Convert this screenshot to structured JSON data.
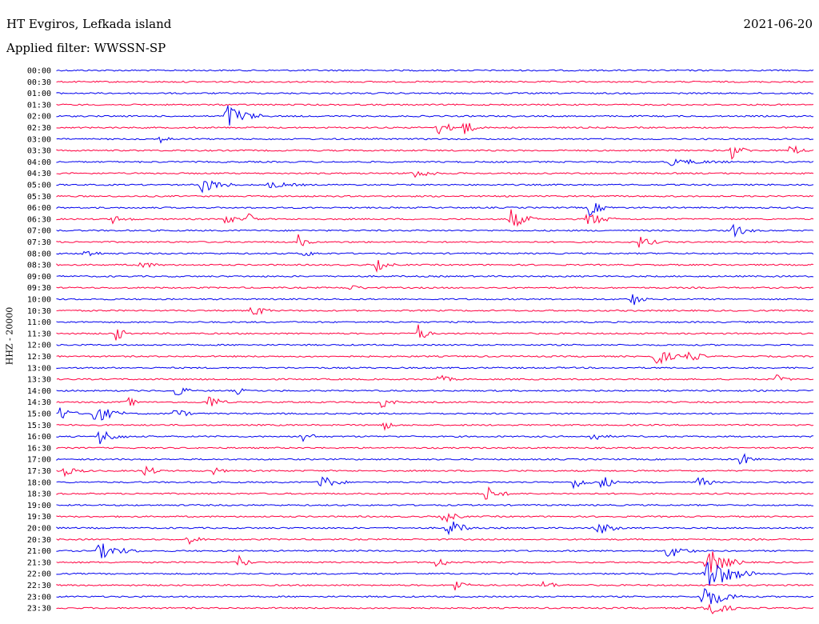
{
  "header": {
    "station": "HT Evgiros, Lefkada island",
    "date": "2021-06-20",
    "filter": "Applied filter: WWSSN-SP"
  },
  "channel_label": "HHZ - 20000",
  "colors": {
    "trace_a": "#0000ee",
    "trace_b": "#ff0040",
    "text": "#000000"
  },
  "chart_data": {
    "type": "line",
    "title": "",
    "ylabel": "HHZ - 20000",
    "xlabel": "",
    "grid": false,
    "legend": "none",
    "rows": [
      {
        "label": "00:00",
        "color": "blue"
      },
      {
        "label": "00:30",
        "color": "red"
      },
      {
        "label": "01:00",
        "color": "blue"
      },
      {
        "label": "01:30",
        "color": "red"
      },
      {
        "label": "02:00",
        "color": "blue"
      },
      {
        "label": "02:30",
        "color": "red"
      },
      {
        "label": "03:00",
        "color": "blue"
      },
      {
        "label": "03:30",
        "color": "red"
      },
      {
        "label": "04:00",
        "color": "blue"
      },
      {
        "label": "04:30",
        "color": "red"
      },
      {
        "label": "05:00",
        "color": "blue"
      },
      {
        "label": "05:30",
        "color": "red"
      },
      {
        "label": "06:00",
        "color": "blue"
      },
      {
        "label": "06:30",
        "color": "red"
      },
      {
        "label": "07:00",
        "color": "blue"
      },
      {
        "label": "07:30",
        "color": "red"
      },
      {
        "label": "08:00",
        "color": "blue"
      },
      {
        "label": "08:30",
        "color": "red"
      },
      {
        "label": "09:00",
        "color": "blue"
      },
      {
        "label": "09:30",
        "color": "red"
      },
      {
        "label": "10:00",
        "color": "blue"
      },
      {
        "label": "10:30",
        "color": "red"
      },
      {
        "label": "11:00",
        "color": "blue"
      },
      {
        "label": "11:30",
        "color": "red"
      },
      {
        "label": "12:00",
        "color": "blue"
      },
      {
        "label": "12:30",
        "color": "red"
      },
      {
        "label": "13:00",
        "color": "blue"
      },
      {
        "label": "13:30",
        "color": "red"
      },
      {
        "label": "14:00",
        "color": "blue"
      },
      {
        "label": "14:30",
        "color": "red"
      },
      {
        "label": "15:00",
        "color": "blue"
      },
      {
        "label": "15:30",
        "color": "red"
      },
      {
        "label": "16:00",
        "color": "blue"
      },
      {
        "label": "16:30",
        "color": "red"
      },
      {
        "label": "17:00",
        "color": "blue"
      },
      {
        "label": "17:30",
        "color": "red"
      },
      {
        "label": "18:00",
        "color": "blue"
      },
      {
        "label": "18:30",
        "color": "red"
      },
      {
        "label": "19:00",
        "color": "blue"
      },
      {
        "label": "19:30",
        "color": "red"
      },
      {
        "label": "20:00",
        "color": "blue"
      },
      {
        "label": "20:30",
        "color": "red"
      },
      {
        "label": "21:00",
        "color": "blue"
      },
      {
        "label": "21:30",
        "color": "red"
      },
      {
        "label": "22:00",
        "color": "blue"
      },
      {
        "label": "22:30",
        "color": "red"
      },
      {
        "label": "23:00",
        "color": "blue"
      },
      {
        "label": "23:30",
        "color": "red"
      }
    ]
  }
}
